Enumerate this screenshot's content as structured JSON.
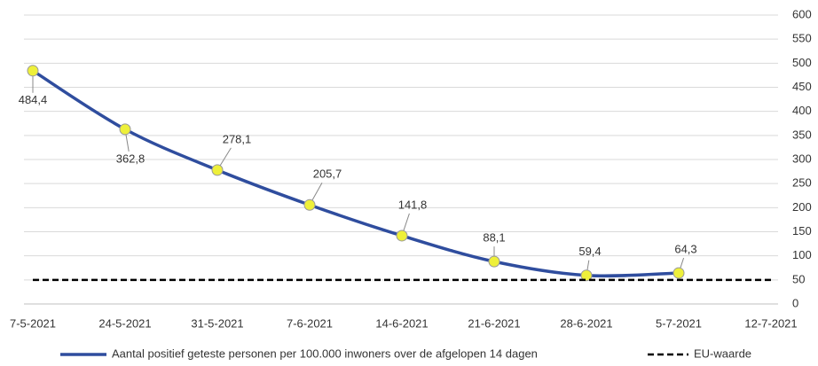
{
  "chart_data": {
    "type": "line",
    "categories": [
      "7-5-2021",
      "24-5-2021",
      "31-5-2021",
      "7-6-2021",
      "14-6-2021",
      "21-6-2021",
      "28-6-2021",
      "5-7-2021",
      "12-7-2021"
    ],
    "series": [
      {
        "name": "Aantal positief geteste personen per 100.000 inwoners over de afgelopen 14 dagen",
        "color": "#2f4d9e",
        "values": [
          484.4,
          362.8,
          278.1,
          205.7,
          141.8,
          88.1,
          59.4,
          64.3,
          null
        ],
        "value_labels": [
          "484,4",
          "362,8",
          "278,1",
          "205,7",
          "141,8",
          "88,1",
          "59,4",
          "64,3",
          null
        ],
        "marker_color": "#eef03a",
        "smooth": true
      },
      {
        "name": "EU-waarde",
        "color": "#000000",
        "dashed": true,
        "values": [
          50,
          50,
          50,
          50,
          50,
          50,
          50,
          50,
          50
        ]
      }
    ],
    "ylim": [
      0,
      600
    ],
    "yticks": [
      0,
      50,
      100,
      150,
      200,
      250,
      300,
      350,
      400,
      450,
      500,
      550,
      600
    ],
    "grid": true,
    "legend": "bottom"
  }
}
